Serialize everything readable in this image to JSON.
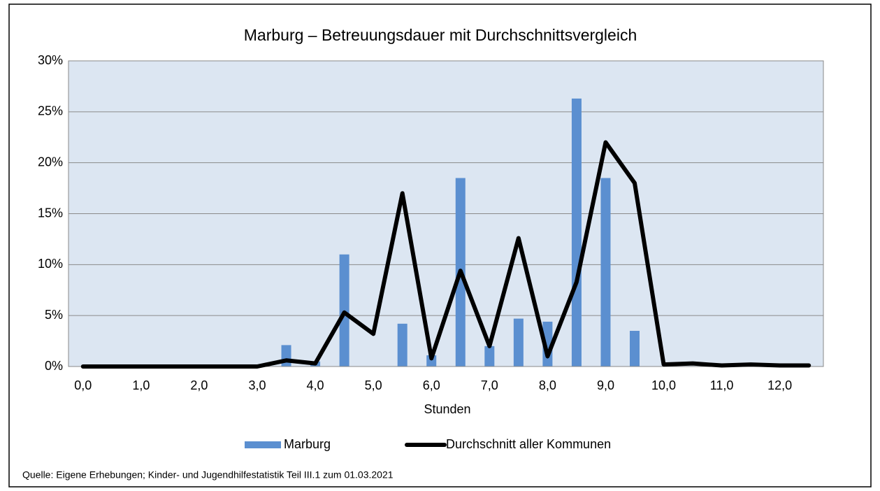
{
  "chart_data": {
    "type": "bar-line",
    "title": "Marburg – Betreuungsdauer mit Durchschnittsvergleich",
    "x_label": "Stunden",
    "source": "Quelle: Eigene Erhebungen;  Kinder- und Jugendhilfestatistik Teil III.1 zum 01.03.2021",
    "categories": [
      "0,0",
      null,
      "1,0",
      null,
      "2,0",
      null,
      "3,0",
      null,
      "4,0",
      null,
      "5,0",
      null,
      "6,0",
      null,
      "7,0",
      null,
      "8,0",
      null,
      "9,0",
      null,
      "10,0",
      null,
      "11,0",
      null,
      "12,0",
      null
    ],
    "series": [
      {
        "name": "Marburg",
        "type": "bar",
        "color": "#5b8fd0",
        "values": [
          0,
          0,
          0,
          0,
          0,
          0,
          0,
          2.1,
          0.5,
          11,
          0,
          4.2,
          1.1,
          18.5,
          2,
          4.7,
          4.4,
          26.3,
          18.5,
          3.5,
          0,
          0,
          0,
          0,
          0,
          0
        ]
      },
      {
        "name": "Durchschnitt aller Kommunen",
        "type": "line",
        "color": "#000000",
        "values": [
          0,
          0,
          0,
          0,
          0,
          0,
          0,
          0.6,
          0.3,
          5.3,
          3.2,
          17,
          0.8,
          9.4,
          2,
          12.6,
          1,
          8.3,
          22,
          18,
          0.2,
          0.3,
          0.1,
          0.2,
          0.1,
          0.1
        ]
      }
    ],
    "ylim": [
      0,
      30
    ],
    "yticks": [
      {
        "value": 0,
        "label": "0%"
      },
      {
        "value": 5,
        "label": "5%"
      },
      {
        "value": 10,
        "label": "10%"
      },
      {
        "value": 15,
        "label": "15%"
      },
      {
        "value": 20,
        "label": "20%"
      },
      {
        "value": 25,
        "label": "25%"
      },
      {
        "value": 30,
        "label": "30%"
      }
    ],
    "grid": true,
    "legend": "bottom"
  }
}
